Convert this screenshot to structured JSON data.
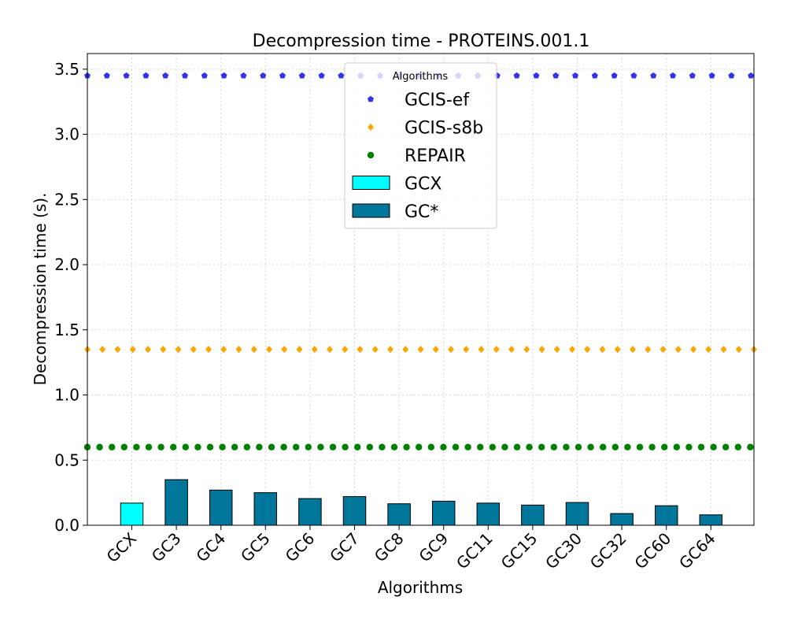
{
  "chart_data": {
    "type": "bar",
    "title": "Decompression time -  PROTEINS.001.1",
    "xlabel": "Algorithms",
    "ylabel": "Decompression time (s).",
    "ylim": [
      0,
      3.62
    ],
    "yticks": [
      0.0,
      0.5,
      1.0,
      1.5,
      2.0,
      2.5,
      3.0,
      3.5
    ],
    "ytick_labels": [
      "0.0",
      "0.5",
      "1.0",
      "1.5",
      "2.0",
      "2.5",
      "3.0",
      "3.5"
    ],
    "grid": true,
    "categories": [
      "GCX",
      "GC3",
      "GC4",
      "GC5",
      "GC6",
      "GC7",
      "GC8",
      "GC9",
      "GC11",
      "GC15",
      "GC30",
      "GC32",
      "GC60",
      "GC64"
    ],
    "bars": [
      {
        "name": "GCX",
        "color": "#00ffff",
        "values": [
          0.17,
          null,
          null,
          null,
          null,
          null,
          null,
          null,
          null,
          null,
          null,
          null,
          null,
          null
        ]
      },
      {
        "name": "GC*",
        "color": "#00769b",
        "values": [
          null,
          0.35,
          0.27,
          0.25,
          0.205,
          0.22,
          0.165,
          0.185,
          0.17,
          0.155,
          0.175,
          0.09,
          0.15,
          0.08
        ]
      }
    ],
    "reference_lines": [
      {
        "name": "GCIS-ef",
        "value": 3.45,
        "color": "#3333ee",
        "marker": "pentagon"
      },
      {
        "name": "GCIS-s8b",
        "value": 1.35,
        "color": "#ffa500",
        "marker": "diamond"
      },
      {
        "name": "REPAIR",
        "value": 0.6,
        "color": "#008000",
        "marker": "circle"
      }
    ],
    "legend": {
      "title": "Algorithms",
      "placement": "upper-center",
      "entries": [
        "GCIS-ef",
        "GCIS-s8b",
        "REPAIR",
        "GCX",
        "GC*"
      ]
    }
  }
}
